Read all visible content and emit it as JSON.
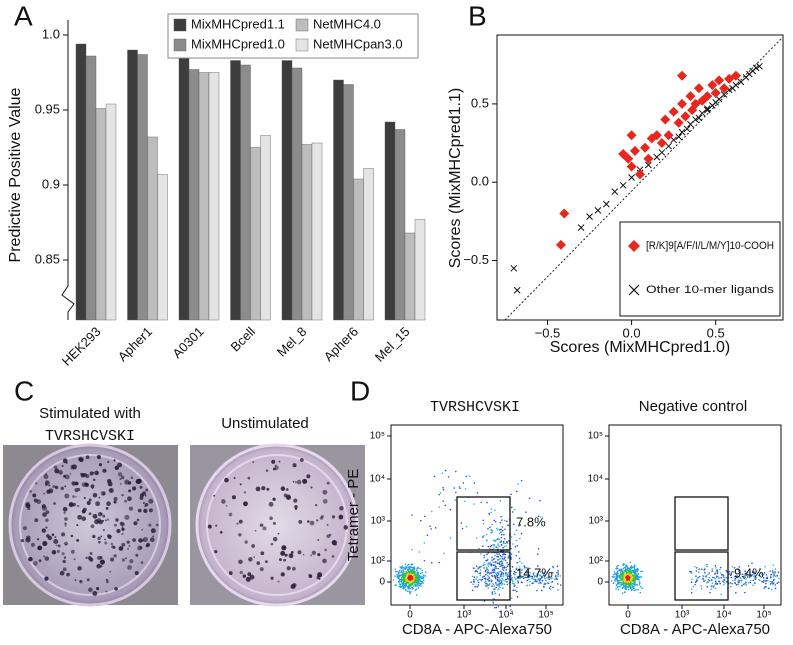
{
  "panel_labels": [
    "A",
    "B",
    "C",
    "D"
  ],
  "chart_data": [
    {
      "type": "bar",
      "ylabel": "Predictive Positive Value",
      "categories": [
        "HEK293",
        "Apher1",
        "A0301",
        "Bcell",
        "Mel_8",
        "Apher6",
        "Mel_15"
      ],
      "series": [
        {
          "name": "MixMHCpred1.1",
          "color": "#3d3d3d",
          "values": [
            0.994,
            0.99,
            0.985,
            0.983,
            0.983,
            0.97,
            0.942
          ]
        },
        {
          "name": "MixMHCpred1.0",
          "color": "#8c8c8c",
          "values": [
            0.986,
            0.987,
            0.977,
            0.98,
            0.978,
            0.967,
            0.937
          ]
        },
        {
          "name": "NetMHC4.0",
          "color": "#bdbdbd",
          "values": [
            0.951,
            0.932,
            0.975,
            0.925,
            0.927,
            0.904,
            0.868
          ]
        },
        {
          "name": "NetMHCpan3.0",
          "color": "#e4e4e4",
          "values": [
            0.954,
            0.907,
            0.975,
            0.933,
            0.928,
            0.911,
            0.877
          ]
        }
      ],
      "ylim": [
        0.81,
        1.01
      ],
      "yticks": [
        0.85,
        0.9,
        0.95,
        {
          "value": 1,
          "label": "1.0"
        }
      ]
    },
    {
      "type": "scatter",
      "xlabel": "Scores (MixMHCpred1.0)",
      "ylabel": "Scores (MixMHCpred1.1)",
      "xlim": [
        -0.8,
        0.9
      ],
      "ylim": [
        -0.88,
        0.94
      ],
      "xticks": [
        {
          "value": -0.5,
          "label": "−0.5"
        },
        {
          "value": 0,
          "label": "0.0"
        },
        0.5
      ],
      "yticks": [
        {
          "value": -0.5,
          "label": "−0.5"
        },
        {
          "value": 0,
          "label": "0.0"
        },
        0.5
      ],
      "series": [
        {
          "name": "[R/K]9[A/F/I/L/M/Y]10-COOH",
          "color": "#e8261c",
          "marker": "diamond",
          "x": [
            -0.42,
            -0.4,
            -0.05,
            0.0,
            0.02,
            0.05,
            0.08,
            0.1,
            0.12,
            0.15,
            0.18,
            0.2,
            0.22,
            0.25,
            0.28,
            0.3,
            0.32,
            0.35,
            0.36,
            0.38,
            0.4,
            0.42,
            0.45,
            0.48,
            0.5,
            0.52,
            0.55,
            0.58,
            0.62,
            0.3,
            0.0,
            -0.02
          ],
          "values": [
            -0.4,
            -0.2,
            0.18,
            0.1,
            0.2,
            0.05,
            0.22,
            0.15,
            0.28,
            0.3,
            0.25,
            0.4,
            0.3,
            0.45,
            0.38,
            0.5,
            0.42,
            0.55,
            0.46,
            0.5,
            0.6,
            0.52,
            0.55,
            0.62,
            0.57,
            0.65,
            0.6,
            0.66,
            0.68,
            0.68,
            0.3,
            0.15
          ]
        },
        {
          "name": "Other 10-mer ligands",
          "color": "#111111",
          "marker": "cross",
          "x": [
            -0.7,
            -0.68,
            -0.3,
            -0.25,
            -0.2,
            -0.15,
            -0.1,
            -0.05,
            0.0,
            0.05,
            0.1,
            0.15,
            0.18,
            0.22,
            0.25,
            0.28,
            0.3,
            0.33,
            0.35,
            0.38,
            0.4,
            0.42,
            0.45,
            0.48,
            0.5,
            0.52,
            0.55,
            0.58,
            0.6,
            0.62,
            0.65,
            0.68,
            0.7,
            0.72,
            0.74,
            0.76,
            0.05,
            0.45
          ],
          "values": [
            -0.55,
            -0.69,
            -0.29,
            -0.22,
            -0.18,
            -0.14,
            -0.06,
            -0.02,
            0.03,
            0.06,
            0.11,
            0.16,
            0.19,
            0.23,
            0.27,
            0.29,
            0.32,
            0.34,
            0.37,
            0.4,
            0.41,
            0.44,
            0.46,
            0.49,
            0.51,
            0.53,
            0.56,
            0.59,
            0.6,
            0.62,
            0.64,
            0.67,
            0.69,
            0.71,
            0.73,
            0.74,
            0.08,
            0.47
          ]
        }
      ]
    }
  ],
  "panel_c": {
    "left_title": "Stimulated with",
    "left_peptide": "TVRSHCVSKI",
    "right_title": "Unstimulated"
  },
  "panel_d": {
    "ylabel": "Tetramer - PE",
    "xlabel": "CD8A - APC-Alexa750",
    "ticks": [
      "0",
      "10²",
      "10³",
      "10⁴",
      "10⁵"
    ],
    "plots": [
      {
        "title": "TVRSHCVSKI",
        "gates": [
          "7.8%",
          "14.7%"
        ]
      },
      {
        "title": "Negative control",
        "gates": [
          "9.4%"
        ]
      }
    ]
  }
}
